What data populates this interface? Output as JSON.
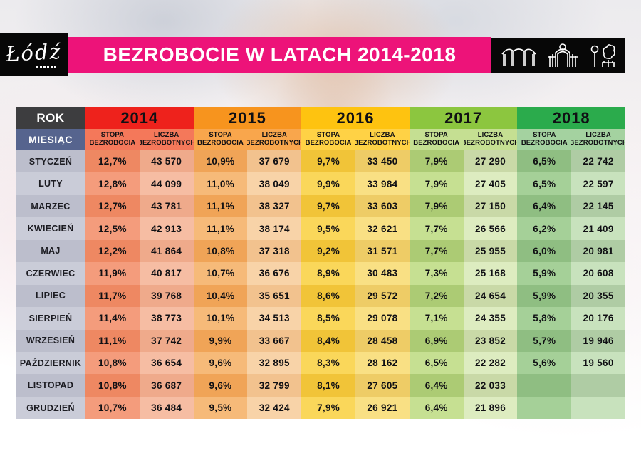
{
  "header": {
    "logo_text": "Łódź",
    "title": "BEZROBOCIE W LATACH 2014-2018",
    "banner_color": "#ED1379",
    "icons": [
      "canopy-arches-icon",
      "gate-clock-icon",
      "park-tree-bench-icon"
    ]
  },
  "table": {
    "rok_label": "ROK",
    "miesiac_label": "MIESIĄC",
    "stopa_label": "STOPA BEZROBOCIA",
    "liczba_label": "LICZBA BEZROBOTNYCH",
    "month_col_shades": [
      "#BCBECC",
      "#CACCD8"
    ],
    "rok_bg": "#3D3D3F",
    "miesiac_bg": "#56648E",
    "years": [
      {
        "header_bg": "#EE221C",
        "sub_bg": "#F4785A",
        "stopa_shades": [
          "#EE8862",
          "#F49C7C"
        ],
        "liczba_shades": [
          "#EFAA8B",
          "#F6BDA3"
        ]
      },
      {
        "header_bg": "#F7941E",
        "sub_bg": "#F9A64C",
        "stopa_shades": [
          "#F0A457",
          "#F6BA79"
        ],
        "liczba_shades": [
          "#F2C28E",
          "#F8D3A8"
        ]
      },
      {
        "header_bg": "#FEC310",
        "sub_bg": "#FFD245",
        "stopa_shades": [
          "#F1C438",
          "#FAD75A"
        ],
        "liczba_shades": [
          "#EECC66",
          "#F9E084"
        ]
      },
      {
        "header_bg": "#8CC63F",
        "sub_bg": "#C5DF92",
        "stopa_shades": [
          "#ACCB74",
          "#C6E092"
        ],
        "liczba_shades": [
          "#C9D9A7",
          "#DDECC0"
        ]
      },
      {
        "header_bg": "#2BAB4C",
        "sub_bg": "#A4D2A0",
        "stopa_shades": [
          "#8FBE82",
          "#A5D098"
        ],
        "liczba_shades": [
          "#AFCCA4",
          "#C8E2BD"
        ]
      }
    ]
  },
  "chart_data": {
    "type": "table",
    "title": "BEZROBOCIE W LATACH 2014-2018",
    "row_header": "MIESIĄC",
    "categories": [
      "STYCZEŃ",
      "LUTY",
      "MARZEC",
      "KWIECIEŃ",
      "MAJ",
      "CZERWIEC",
      "LIPIEC",
      "SIERPIEŃ",
      "WRZESIEŃ",
      "PAŹDZIERNIK",
      "LISTOPAD",
      "GRUDZIEŃ"
    ],
    "series": [
      {
        "name": "2014",
        "stopa_bezrobocia": [
          12.7,
          12.8,
          12.7,
          12.5,
          12.2,
          11.9,
          11.7,
          11.4,
          11.1,
          10.8,
          10.8,
          10.7
        ],
        "liczba_bezrobotnych": [
          43570,
          44099,
          43781,
          42913,
          41864,
          40817,
          39768,
          38773,
          37742,
          36654,
          36687,
          36484
        ]
      },
      {
        "name": "2015",
        "stopa_bezrobocia": [
          10.9,
          11.0,
          11.1,
          11.1,
          10.8,
          10.7,
          10.4,
          10.1,
          9.9,
          9.6,
          9.6,
          9.5
        ],
        "liczba_bezrobotnych": [
          37679,
          38049,
          38327,
          38174,
          37318,
          36676,
          35651,
          34513,
          33667,
          32895,
          32799,
          32424
        ]
      },
      {
        "name": "2016",
        "stopa_bezrobocia": [
          9.7,
          9.9,
          9.7,
          9.5,
          9.2,
          8.9,
          8.6,
          8.5,
          8.4,
          8.3,
          8.1,
          7.9
        ],
        "liczba_bezrobotnych": [
          33450,
          33984,
          33603,
          32621,
          31571,
          30483,
          29572,
          29078,
          28458,
          28162,
          27605,
          26921
        ]
      },
      {
        "name": "2017",
        "stopa_bezrobocia": [
          7.9,
          7.9,
          7.9,
          7.7,
          7.7,
          7.3,
          7.2,
          7.1,
          6.9,
          6.5,
          6.4,
          6.4
        ],
        "liczba_bezrobotnych": [
          27290,
          27405,
          27150,
          26566,
          25955,
          25168,
          24654,
          24355,
          23852,
          22282,
          22033,
          21896
        ]
      },
      {
        "name": "2018",
        "stopa_bezrobocia": [
          6.5,
          6.5,
          6.4,
          6.2,
          6.0,
          5.9,
          5.9,
          5.8,
          5.7,
          5.6,
          null,
          null
        ],
        "liczba_bezrobotnych": [
          22742,
          22597,
          22145,
          21409,
          20981,
          20608,
          20355,
          20176,
          19946,
          19560,
          null,
          null
        ]
      }
    ]
  }
}
